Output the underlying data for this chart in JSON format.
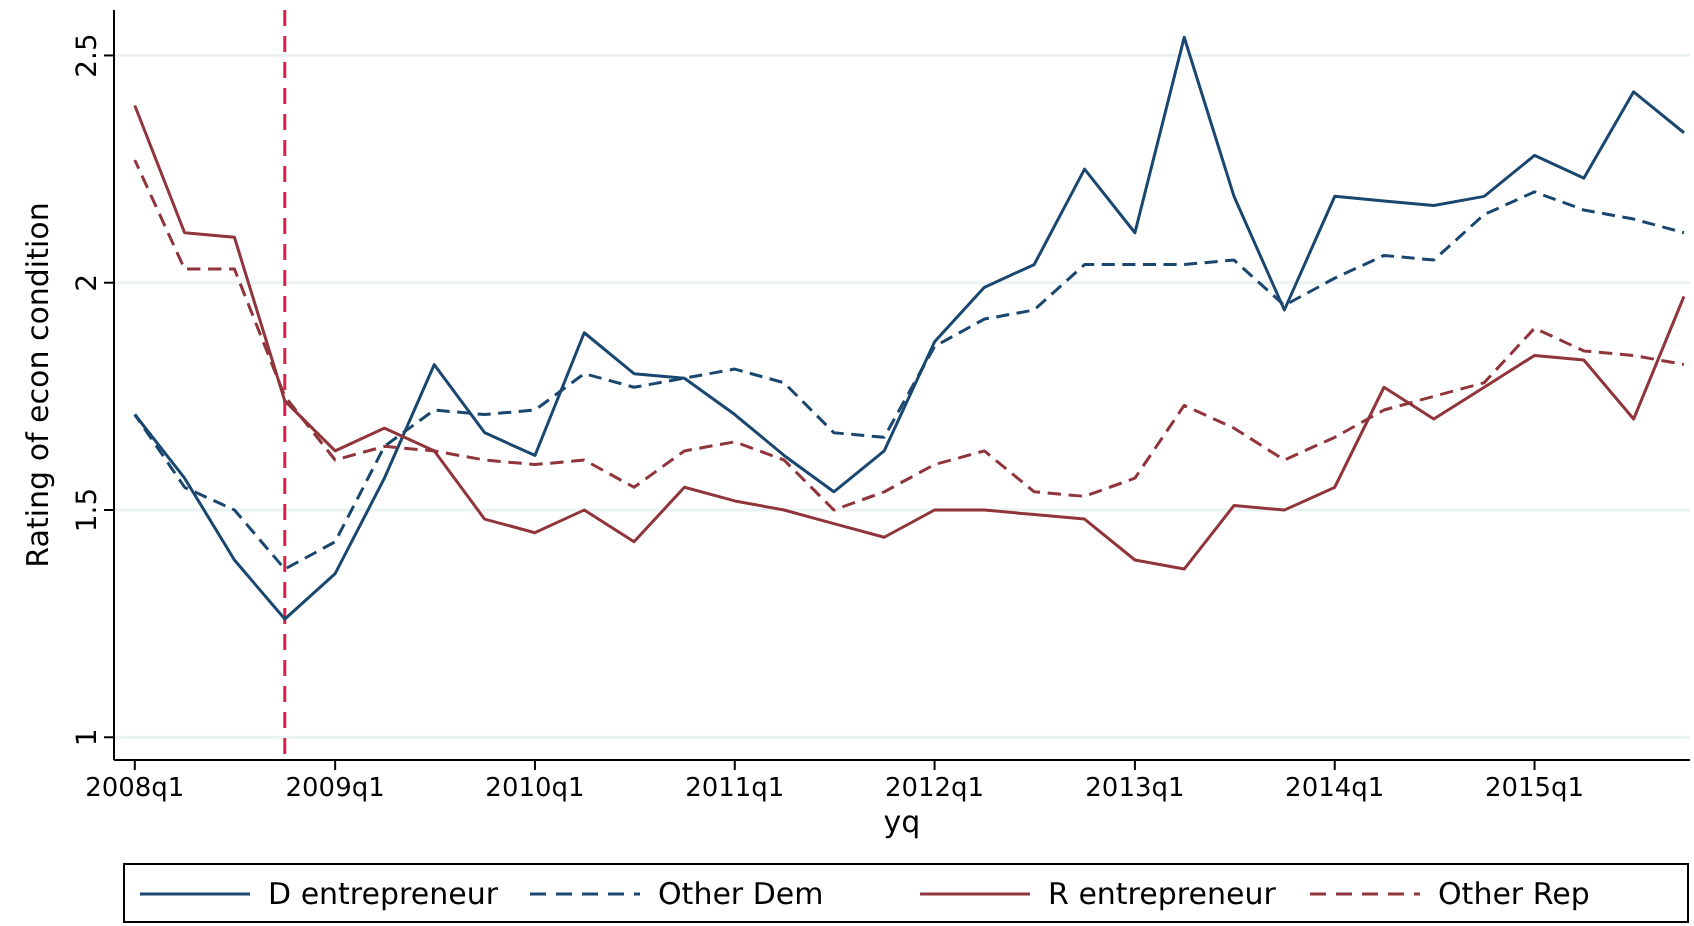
{
  "chart_data": {
    "type": "line",
    "xlabel": "yq",
    "ylabel": "Rating of econ condition",
    "x": [
      "2008-01",
      "2008-04",
      "2008-07",
      "2008-10",
      "2009-01",
      "2009-04",
      "2009-07",
      "2009-10",
      "2010-01",
      "2010-04",
      "2010-07",
      "2010-10",
      "2011-01",
      "2011-04",
      "2011-07",
      "2011-10",
      "2012-01",
      "2012-04",
      "2012-07",
      "2012-10",
      "2013-01",
      "2013-04",
      "2013-07",
      "2013-10",
      "2014-01",
      "2014-04",
      "2014-07",
      "2014-10",
      "2015-01",
      "2015-04",
      "2015-07",
      "2015-10"
    ],
    "series": [
      {
        "name": "D entrepreneur",
        "color": "#1a476f",
        "line_style": "solid",
        "values": [
          1.71,
          1.57,
          1.39,
          1.26,
          1.36,
          1.57,
          1.82,
          1.67,
          1.62,
          1.89,
          1.8,
          1.79,
          1.71,
          1.62,
          1.54,
          1.63,
          1.87,
          1.99,
          2.04,
          2.25,
          2.11,
          2.54,
          2.19,
          1.94,
          2.19,
          2.18,
          2.17,
          2.19,
          2.28,
          2.23,
          2.42,
          2.33
        ]
      },
      {
        "name": "Other Dem",
        "color": "#1a476f",
        "line_style": "dashed",
        "values": [
          1.71,
          1.55,
          1.5,
          1.37,
          1.43,
          1.64,
          1.72,
          1.71,
          1.72,
          1.8,
          1.77,
          1.79,
          1.81,
          1.78,
          1.67,
          1.66,
          1.86,
          1.92,
          1.94,
          2.04,
          2.04,
          2.04,
          2.05,
          1.95,
          2.01,
          2.06,
          2.05,
          2.15,
          2.2,
          2.16,
          2.14,
          2.11
        ]
      },
      {
        "name": "R entrepreneur",
        "color": "#90353b",
        "line_style": "solid",
        "values": [
          2.39,
          2.11,
          2.1,
          1.74,
          1.63,
          1.68,
          1.63,
          1.48,
          1.45,
          1.5,
          1.43,
          1.55,
          1.52,
          1.5,
          1.47,
          1.44,
          1.5,
          1.5,
          1.49,
          1.48,
          1.39,
          1.37,
          1.51,
          1.5,
          1.55,
          1.77,
          1.7,
          1.77,
          1.84,
          1.83,
          1.7,
          1.97
        ]
      },
      {
        "name": "Other Rep",
        "color": "#90353b",
        "line_style": "dashed",
        "values": [
          2.27,
          2.03,
          2.03,
          1.75,
          1.61,
          1.64,
          1.63,
          1.61,
          1.6,
          1.61,
          1.55,
          1.63,
          1.65,
          1.61,
          1.5,
          1.54,
          1.6,
          1.63,
          1.54,
          1.53,
          1.57,
          1.73,
          1.68,
          1.61,
          1.66,
          1.72,
          1.75,
          1.78,
          1.9,
          1.85,
          1.84,
          1.82
        ]
      }
    ],
    "xlim": [
      "2007-11-24",
      "2015-10-12"
    ],
    "xticks": [
      {
        "value": "2008-01",
        "label": "2008q1"
      },
      {
        "value": "2009-01",
        "label": "2009q1"
      },
      {
        "value": "2010-01",
        "label": "2010q1"
      },
      {
        "value": "2011-01",
        "label": "2011q1"
      },
      {
        "value": "2012-01",
        "label": "2012q1"
      },
      {
        "value": "2013-01",
        "label": "2013q1"
      },
      {
        "value": "2014-01",
        "label": "2014q1"
      },
      {
        "value": "2015-01",
        "label": "2015q1"
      }
    ],
    "ylim": [
      0.95,
      2.6
    ],
    "yticks": [
      1,
      1.5,
      2,
      2.5
    ],
    "grid": "y",
    "legend": "bottom",
    "marker": "none",
    "ref_lines": [
      {
        "axis": "x",
        "value": "2008-10",
        "color": "#d62346",
        "line_style": "dashed"
      }
    ]
  }
}
